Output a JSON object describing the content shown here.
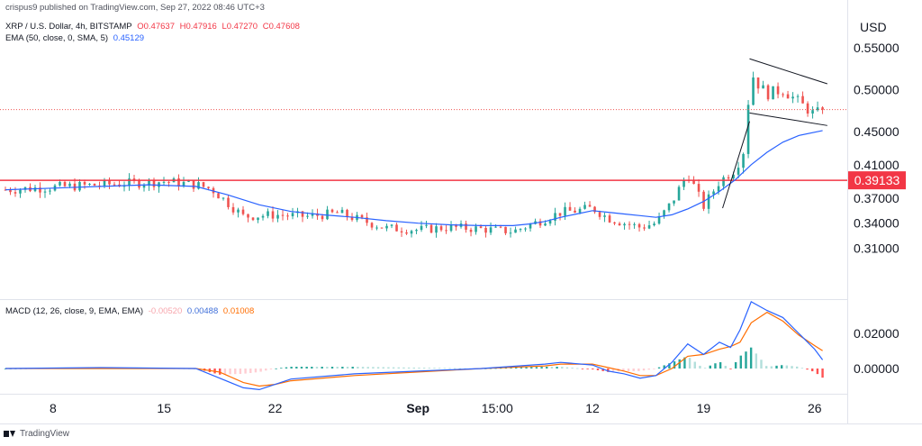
{
  "publisher_line": "crispus9 published on TradingView.com, Sep 27, 2022 08:46 UTC+3",
  "legend": {
    "symbol": "XRP / U.S. Dollar, 4h, BITSTAMP",
    "open": "O0.47637",
    "high": "H0.47916",
    "low": "L0.47270",
    "close": "C0.47608",
    "ema_label": "EMA (50, close, 0, SMA, 5)",
    "ema_value": "0.45129",
    "macd_label": "MACD (12, 26, close, 9, EMA, EMA)",
    "macd_hist": "-0.00520",
    "macd_line": "0.00488",
    "macd_signal": "0.01008"
  },
  "currency": "USD",
  "footer": "TradingView",
  "colors": {
    "up": "#26a69a",
    "down": "#ef5350",
    "ema": "#2962ff",
    "macd": "#2962ff",
    "signal": "#ff6d00",
    "hline": "#f23645",
    "hist_up_strong": "#26a69a",
    "hist_up_weak": "#b2dfdb",
    "hist_down_strong": "#ff5252",
    "hist_down_weak": "#ffcdd2"
  },
  "chart_data": {
    "type": "candlestick",
    "price_axis": {
      "ticks": [
        0.55,
        0.5,
        0.45,
        0.41,
        0.37,
        0.34,
        0.31
      ],
      "tick_labels": [
        "0.55000",
        "0.50000",
        "0.45000",
        "0.41000",
        "0.37000",
        "0.34000",
        "0.31000"
      ]
    },
    "macd_axis": {
      "ticks": [
        0.02,
        0.0
      ],
      "tick_labels": [
        "0.02000",
        "0.00000"
      ]
    },
    "x_labels": [
      {
        "label": "8",
        "x": 3
      },
      {
        "label": "15",
        "x": 10
      },
      {
        "label": "22",
        "x": 17
      },
      {
        "label": "Sep",
        "x": 26,
        "bold": true
      },
      {
        "label": "15:00",
        "x": 31
      },
      {
        "label": "12",
        "x": 37
      },
      {
        "label": "19",
        "x": 44
      },
      {
        "label": "26",
        "x": 51
      }
    ],
    "horizontal_line": {
      "value": 0.39133,
      "label": "0.39133"
    },
    "last_price": 0.47608,
    "close_points": [
      [
        0,
        0.38
      ],
      [
        2,
        0.382
      ],
      [
        4,
        0.384
      ],
      [
        6,
        0.386
      ],
      [
        8,
        0.388
      ],
      [
        10,
        0.39
      ],
      [
        12,
        0.386
      ],
      [
        13,
        0.381
      ],
      [
        15,
        0.348
      ],
      [
        17,
        0.35
      ],
      [
        19,
        0.348
      ],
      [
        21,
        0.352
      ],
      [
        22,
        0.346
      ],
      [
        24,
        0.334
      ],
      [
        26,
        0.332
      ],
      [
        28,
        0.335
      ],
      [
        30,
        0.333
      ],
      [
        32,
        0.33
      ],
      [
        34,
        0.345
      ],
      [
        35,
        0.353
      ],
      [
        36,
        0.355
      ],
      [
        37,
        0.358
      ],
      [
        38,
        0.346
      ],
      [
        39,
        0.34
      ],
      [
        40,
        0.335
      ],
      [
        41,
        0.34
      ],
      [
        42,
        0.365
      ],
      [
        43,
        0.4
      ],
      [
        44,
        0.36
      ],
      [
        45,
        0.39
      ],
      [
        46,
        0.405
      ],
      [
        46.5,
        0.425
      ],
      [
        47,
        0.52
      ],
      [
        47.5,
        0.505
      ],
      [
        48,
        0.495
      ],
      [
        49,
        0.5
      ],
      [
        50,
        0.485
      ],
      [
        51,
        0.47
      ],
      [
        51.5,
        0.476
      ]
    ],
    "ema_points": [
      [
        0,
        0.38
      ],
      [
        3,
        0.382
      ],
      [
        6,
        0.384
      ],
      [
        9,
        0.386
      ],
      [
        12,
        0.384
      ],
      [
        14,
        0.374
      ],
      [
        16,
        0.362
      ],
      [
        18,
        0.354
      ],
      [
        20,
        0.35
      ],
      [
        22,
        0.347
      ],
      [
        24,
        0.343
      ],
      [
        26,
        0.34
      ],
      [
        28,
        0.338
      ],
      [
        30,
        0.337
      ],
      [
        32,
        0.337
      ],
      [
        33,
        0.339
      ],
      [
        34,
        0.342
      ],
      [
        35,
        0.347
      ],
      [
        36,
        0.351
      ],
      [
        37,
        0.355
      ],
      [
        38,
        0.353
      ],
      [
        39,
        0.351
      ],
      [
        40,
        0.349
      ],
      [
        41,
        0.347
      ],
      [
        42,
        0.35
      ],
      [
        43,
        0.357
      ],
      [
        44,
        0.366
      ],
      [
        45,
        0.378
      ],
      [
        46,
        0.392
      ],
      [
        47,
        0.41
      ],
      [
        48,
        0.425
      ],
      [
        49,
        0.437
      ],
      [
        50,
        0.445
      ],
      [
        51.5,
        0.451
      ]
    ],
    "macd_points": [
      [
        0,
        0.0
      ],
      [
        6,
        0.0005
      ],
      [
        12,
        0.0
      ],
      [
        13.5,
        -0.0055
      ],
      [
        15,
        -0.011
      ],
      [
        16,
        -0.012
      ],
      [
        17,
        -0.009
      ],
      [
        18,
        -0.006
      ],
      [
        22,
        -0.003
      ],
      [
        26,
        -0.0015
      ],
      [
        30,
        0.0
      ],
      [
        34,
        0.0025
      ],
      [
        35,
        0.0035
      ],
      [
        37,
        0.002
      ],
      [
        38,
        -0.0015
      ],
      [
        39,
        -0.003
      ],
      [
        40,
        -0.0055
      ],
      [
        41,
        -0.004
      ],
      [
        42,
        0.0035
      ],
      [
        43,
        0.014
      ],
      [
        44,
        0.008
      ],
      [
        45,
        0.015
      ],
      [
        45.7,
        0.012
      ],
      [
        46.3,
        0.022
      ],
      [
        47,
        0.038
      ],
      [
        48,
        0.033
      ],
      [
        49,
        0.029
      ],
      [
        50,
        0.02
      ],
      [
        51,
        0.011
      ],
      [
        51.5,
        0.0049
      ]
    ],
    "signal_points": [
      [
        0,
        0.0
      ],
      [
        12,
        0.0
      ],
      [
        13.5,
        -0.002
      ],
      [
        15,
        -0.008
      ],
      [
        16,
        -0.01
      ],
      [
        17,
        -0.009
      ],
      [
        18,
        -0.007
      ],
      [
        22,
        -0.004
      ],
      [
        26,
        -0.002
      ],
      [
        30,
        0.0
      ],
      [
        34,
        0.0015
      ],
      [
        35,
        0.0025
      ],
      [
        37,
        0.0025
      ],
      [
        38,
        0.0005
      ],
      [
        39,
        -0.0015
      ],
      [
        40,
        -0.004
      ],
      [
        41,
        -0.004
      ],
      [
        42,
        0.0
      ],
      [
        43,
        0.007
      ],
      [
        44,
        0.008
      ],
      [
        45,
        0.011
      ],
      [
        45.7,
        0.0125
      ],
      [
        46.3,
        0.015
      ],
      [
        47,
        0.026
      ],
      [
        48,
        0.032
      ],
      [
        49,
        0.027
      ],
      [
        50,
        0.019
      ],
      [
        51,
        0.013
      ],
      [
        51.5,
        0.0101
      ]
    ],
    "pattern": {
      "pole": [
        [
          45.2,
          0.358
        ],
        [
          46.9,
          0.462
        ]
      ],
      "upper": [
        [
          46.9,
          0.537
        ],
        [
          51.8,
          0.507
        ]
      ],
      "lower": [
        [
          46.9,
          0.472
        ],
        [
          51.8,
          0.457
        ]
      ]
    }
  }
}
